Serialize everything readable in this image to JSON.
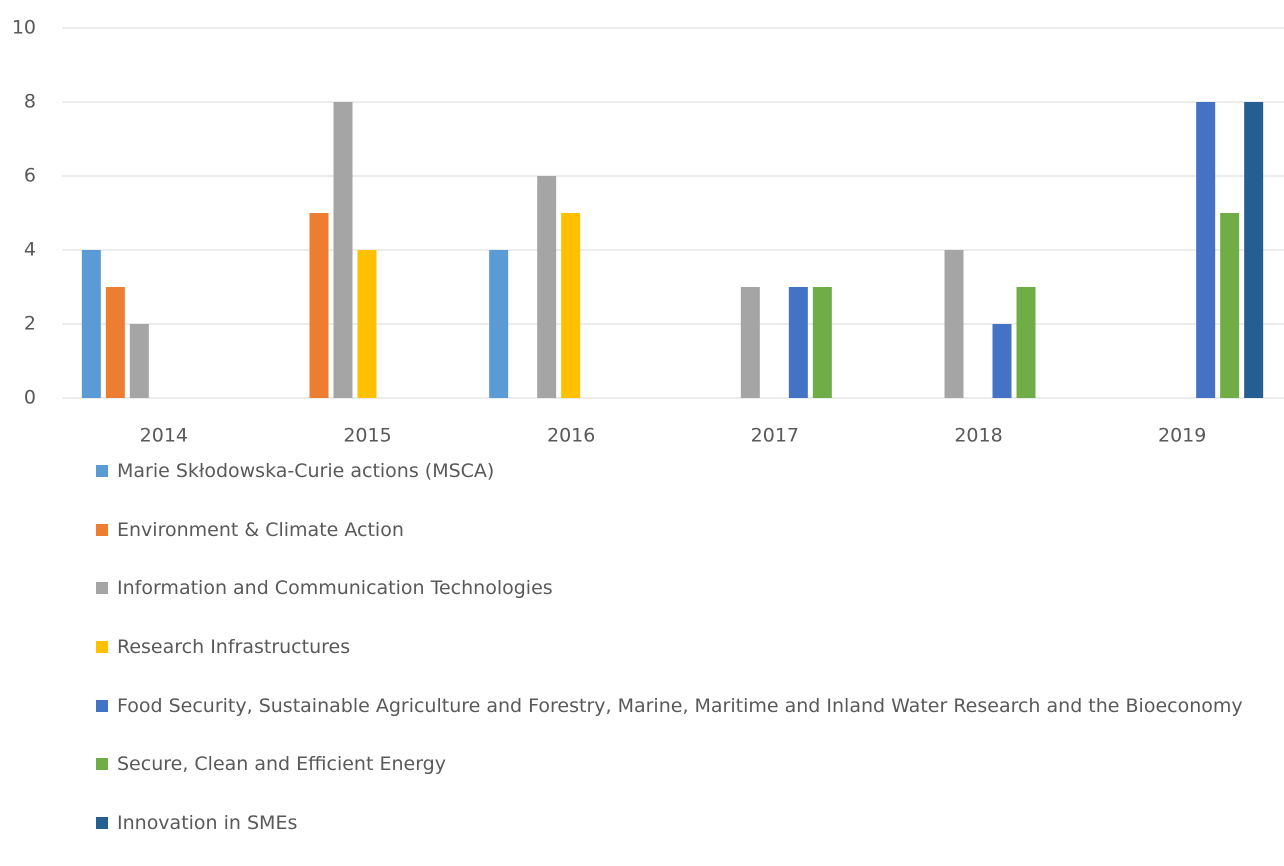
{
  "chart_data": {
    "type": "bar",
    "categories": [
      "2014",
      "2015",
      "2016",
      "2017",
      "2018",
      "2019"
    ],
    "series": [
      {
        "name": "Marie Skłodowska-Curie actions (MSCA)",
        "color": "#5b9bd5",
        "values": [
          4,
          null,
          4,
          null,
          null,
          null
        ]
      },
      {
        "name": "Environment & Climate Action",
        "color": "#ed7d31",
        "values": [
          3,
          5,
          null,
          null,
          null,
          null
        ]
      },
      {
        "name": "Information and Communication Technologies",
        "color": "#a5a5a5",
        "values": [
          2,
          8,
          6,
          3,
          4,
          null
        ]
      },
      {
        "name": "Research Infrastructures",
        "color": "#ffc000",
        "values": [
          null,
          4,
          5,
          null,
          null,
          null
        ]
      },
      {
        "name": "Food Security, Sustainable Agriculture and Forestry, Marine, Maritime and Inland Water Research and the Bioeconomy",
        "color": "#4472c4",
        "values": [
          null,
          null,
          null,
          3,
          2,
          8
        ]
      },
      {
        "name": "Secure, Clean and Efficient Energy",
        "color": "#70ad47",
        "values": [
          null,
          null,
          null,
          3,
          3,
          5
        ]
      },
      {
        "name": "Innovation in SMEs",
        "color": "#255e91",
        "values": [
          null,
          null,
          null,
          null,
          null,
          8
        ]
      }
    ],
    "ylim": [
      0,
      10
    ],
    "yticks": [
      0,
      2,
      4,
      6,
      8,
      10
    ],
    "grid": true,
    "legend": "bottom"
  }
}
